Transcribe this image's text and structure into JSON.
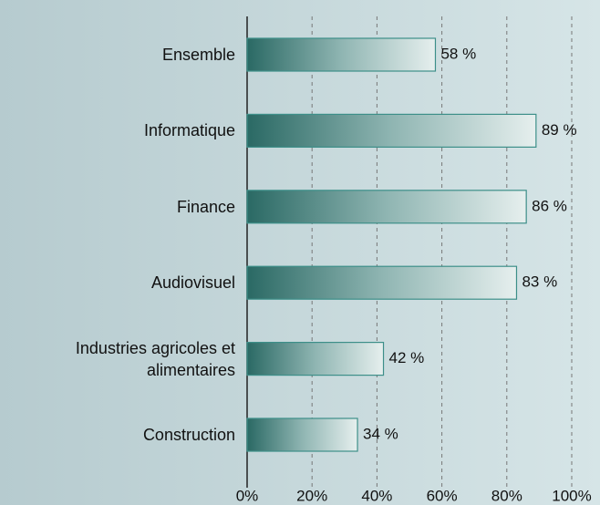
{
  "chart_data": {
    "type": "bar",
    "orientation": "horizontal",
    "categories": [
      "Ensemble",
      "Informatique",
      "Finance",
      "Audiovisuel",
      "Industries agricoles et alimentaires",
      "Construction"
    ],
    "values": [
      58,
      89,
      86,
      83,
      42,
      34
    ],
    "value_labels": [
      "58 %",
      "89 %",
      "86 %",
      "83 %",
      "42 %",
      "34 %"
    ],
    "xlim": [
      0,
      100
    ],
    "xticks": [
      {
        "value": 0,
        "label": "0%"
      },
      {
        "value": 20,
        "label": "20%"
      },
      {
        "value": 40,
        "label": "40%"
      },
      {
        "value": 60,
        "label": "60%"
      },
      {
        "value": 80,
        "label": "80%"
      },
      {
        "value": 100,
        "label": "100%"
      }
    ],
    "grid": true,
    "color": "#2e6e68"
  }
}
